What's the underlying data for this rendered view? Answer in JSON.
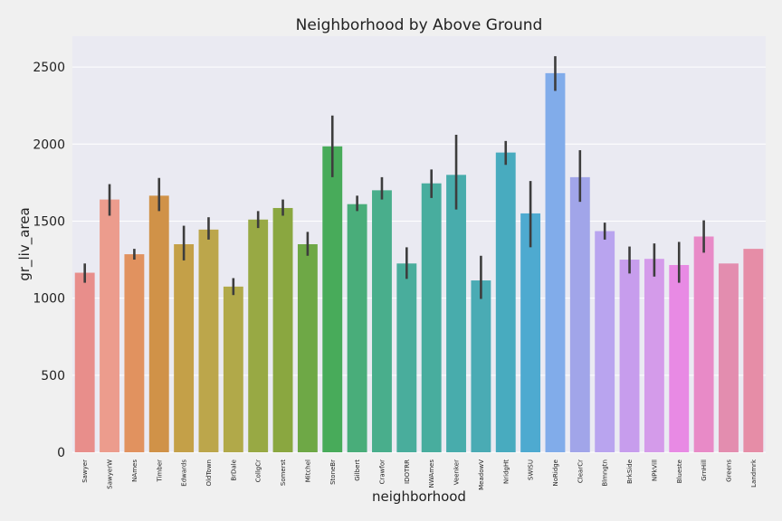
{
  "chart_data": {
    "type": "bar",
    "title": "Neighborhood by Above Ground",
    "xlabel": "neighborhood",
    "ylabel": "gr_liv_area",
    "ylim": [
      0,
      2700
    ],
    "yticks": [
      0,
      500,
      1000,
      1500,
      2000,
      2500
    ],
    "grid": true,
    "categories": [
      "Sawyer",
      "SawyerW",
      "NAmes",
      "Timber",
      "Edwards",
      "OldTown",
      "BrDale",
      "CollgCr",
      "Somerst",
      "Mitchel",
      "StoneBr",
      "Gilbert",
      "Crawfor",
      "IDOTRR",
      "NWAmes",
      "Veenker",
      "MeadowV",
      "NridgHt",
      "SWISU",
      "NoRidge",
      "ClearCr",
      "Blmngtn",
      "BrkSide",
      "NPkVill",
      "Blueste",
      "GrnHill",
      "Greens",
      "Landmrk"
    ],
    "values": [
      1165,
      1640,
      1285,
      1665,
      1350,
      1445,
      1075,
      1510,
      1585,
      1350,
      1985,
      1610,
      1700,
      1225,
      1745,
      1800,
      1115,
      1945,
      1550,
      2460,
      1785,
      1435,
      1250,
      1255,
      1215,
      1400,
      1225,
      1320
    ],
    "error_low": [
      1100,
      1535,
      1250,
      1565,
      1245,
      1380,
      1020,
      1455,
      1535,
      1275,
      1785,
      1565,
      1640,
      1125,
      1650,
      1575,
      995,
      1865,
      1330,
      2345,
      1625,
      1380,
      1160,
      1140,
      1100,
      1295,
      null,
      null
    ],
    "error_high": [
      1225,
      1740,
      1320,
      1780,
      1470,
      1525,
      1130,
      1565,
      1640,
      1430,
      2185,
      1665,
      1785,
      1330,
      1835,
      2060,
      1275,
      2020,
      1760,
      2570,
      1960,
      1490,
      1335,
      1355,
      1365,
      1505,
      null,
      null
    ],
    "colors": [
      "#e88e8b",
      "#ec9c8d",
      "#e1925f",
      "#d09248",
      "#c4a048",
      "#bca64b",
      "#b1a949",
      "#98a944",
      "#8aa740",
      "#6ea846",
      "#48ab5a",
      "#49ad7a",
      "#49ae8c",
      "#49ad9c",
      "#48ad9e",
      "#48acac",
      "#4aabb4",
      "#48abbf",
      "#4eaad0",
      "#81acea",
      "#a1a5e9",
      "#b9a4ef",
      "#c79ded",
      "#d49bea",
      "#e88ae4",
      "#e88ac7",
      "#e38daf",
      "#e68da7"
    ]
  }
}
